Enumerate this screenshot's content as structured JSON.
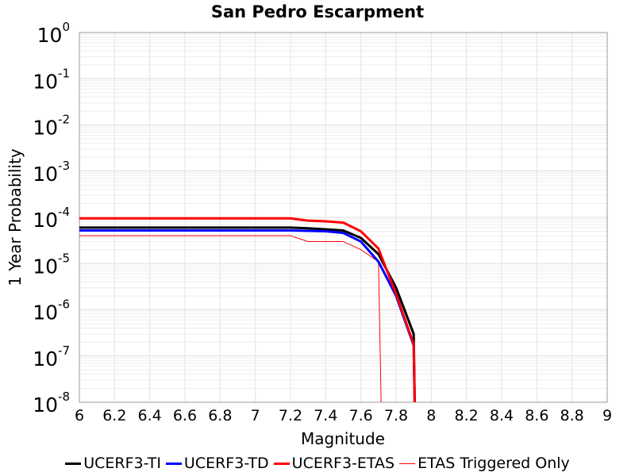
{
  "chart_data": {
    "type": "line",
    "title": "San Pedro Escarpment",
    "xlabel": "Magnitude",
    "ylabel": "1 Year Probability",
    "xlim": [
      6,
      9
    ],
    "ylim": [
      1e-08,
      1
    ],
    "yscale": "log",
    "grid": true,
    "legend_position": "bottom",
    "x_ticks": [
      "6",
      "6.2",
      "6.4",
      "6.6",
      "6.8",
      "7",
      "7.2",
      "7.4",
      "7.6",
      "7.8",
      "8",
      "8.2",
      "8.4",
      "8.6",
      "8.8",
      "9"
    ],
    "y_ticks": [
      {
        "base": "10",
        "exp": "0"
      },
      {
        "base": "10",
        "exp": "-1"
      },
      {
        "base": "10",
        "exp": "-2"
      },
      {
        "base": "10",
        "exp": "-3"
      },
      {
        "base": "10",
        "exp": "-4"
      },
      {
        "base": "10",
        "exp": "-5"
      },
      {
        "base": "10",
        "exp": "-6"
      },
      {
        "base": "10",
        "exp": "-7"
      },
      {
        "base": "10",
        "exp": "-8"
      }
    ],
    "series": [
      {
        "name": "UCERF3-TI",
        "color": "#000000",
        "width": 3,
        "x": [
          6.0,
          7.2,
          7.3,
          7.4,
          7.5,
          7.6,
          7.7,
          7.8,
          7.9,
          7.91
        ],
        "y": [
          6e-05,
          6e-05,
          5.8e-05,
          5.5e-05,
          5.2e-05,
          3.6e-05,
          1.6e-05,
          3e-06,
          3e-07,
          1e-09
        ]
      },
      {
        "name": "UCERF3-TD",
        "color": "#0000ff",
        "width": 3,
        "x": [
          6.0,
          7.2,
          7.3,
          7.4,
          7.5,
          7.6,
          7.7,
          7.8,
          7.9,
          7.91
        ],
        "y": [
          5.2e-05,
          5.2e-05,
          5.1e-05,
          5e-05,
          4.6e-05,
          3e-05,
          1.1e-05,
          2e-06,
          1.7e-07,
          1e-09
        ]
      },
      {
        "name": "UCERF3-ETAS",
        "color": "#ff0000",
        "width": 3,
        "x": [
          6.0,
          7.2,
          7.3,
          7.4,
          7.5,
          7.6,
          7.7,
          7.8,
          7.9,
          7.91
        ],
        "y": [
          9.5e-05,
          9.5e-05,
          8.5e-05,
          8.2e-05,
          7.7e-05,
          5e-05,
          2.1e-05,
          2.2e-06,
          1.8e-07,
          1e-09
        ]
      },
      {
        "name": "ETAS Triggered Only",
        "color": "#ff0000",
        "width": 1,
        "x": [
          6.0,
          7.2,
          7.3,
          7.4,
          7.5,
          7.6,
          7.7,
          7.72
        ],
        "y": [
          4e-05,
          4e-05,
          3e-05,
          3e-05,
          3e-05,
          2e-05,
          1.1e-05,
          1e-09
        ]
      }
    ]
  }
}
